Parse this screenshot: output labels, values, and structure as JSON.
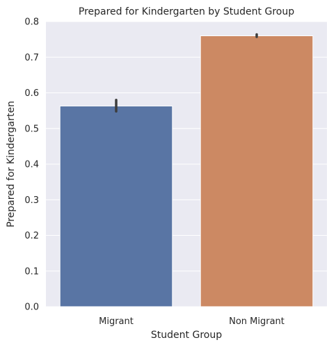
{
  "chart_data": {
    "type": "bar",
    "title": "Prepared for Kindergarten by Student Group",
    "xlabel": "Student Group",
    "ylabel": "Prepared for Kindergarten",
    "categories": [
      "Migrant",
      "Non Migrant"
    ],
    "values": [
      0.563,
      0.76
    ],
    "error_bars": [
      [
        0.548,
        0.58
      ],
      [
        0.757,
        0.764
      ]
    ],
    "bar_colors": [
      "#5975a4",
      "#cc8963"
    ],
    "error_bar_color": "#3d3d3d",
    "ylim": [
      0,
      0.8
    ],
    "yticks": [
      0.0,
      0.1,
      0.2,
      0.3,
      0.4,
      0.5,
      0.6,
      0.7,
      0.8
    ],
    "ytick_labels": [
      "0.0",
      "0.1",
      "0.2",
      "0.3",
      "0.4",
      "0.5",
      "0.6",
      "0.7",
      "0.8"
    ],
    "grid": true,
    "style": {
      "background": "#eaeaf2",
      "grid_color": "#ffffff"
    }
  }
}
